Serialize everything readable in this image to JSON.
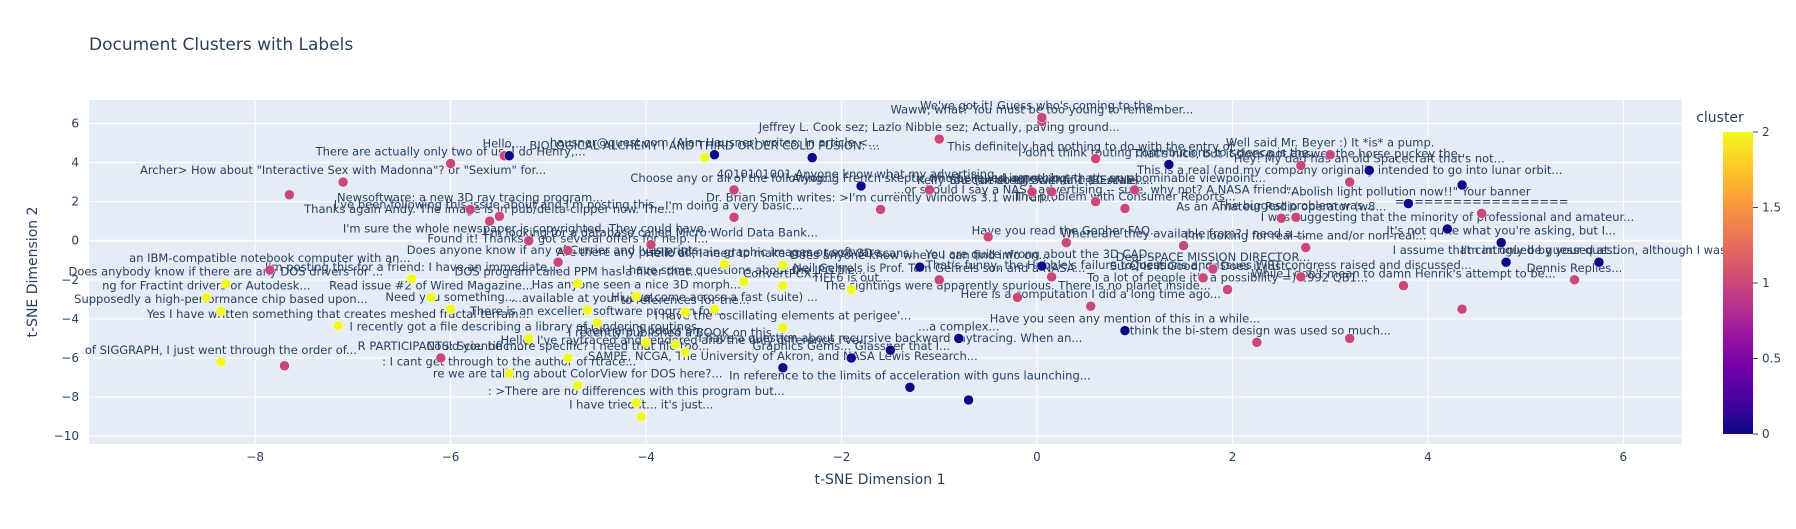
{
  "chart_data": {
    "type": "scatter",
    "title": "Document Clusters with Labels",
    "xlabel": "t-SNE Dimension 1",
    "ylabel": "t-SNE Dimension 2",
    "xlim": [
      -9.7,
      6.6
    ],
    "ylim": [
      -10.4,
      7.2
    ],
    "xticks": [
      -8,
      -6,
      -4,
      -2,
      0,
      2,
      4,
      6
    ],
    "yticks": [
      -10,
      -8,
      -6,
      -4,
      -2,
      0,
      2,
      4,
      6
    ],
    "grid": true,
    "colorbar": {
      "title": "cluster",
      "range": [
        0,
        2
      ],
      "ticks": [
        "0",
        "0.5",
        "1",
        "1.5",
        "2"
      ],
      "colorscale": [
        "#0d0887",
        "#46039f",
        "#7201a8",
        "#9c179e",
        "#bd3786",
        "#d8576b",
        "#ed7953",
        "#fb9f3a",
        "#fdca26",
        "#f0f921"
      ]
    },
    "points": [
      {
        "x": 0.05,
        "y": 6.1,
        "c": 1,
        "label": "Waww, what? You must be too young to remember..."
      },
      {
        "x": 0.05,
        "y": 6.3,
        "c": 1,
        "label": "We've got it! Guess who's coming to the..."
      },
      {
        "x": -1.0,
        "y": 5.2,
        "c": 1,
        "label": "Jeffrey L. Cook sez; Lazlo Nibble sez; Actually, paving ground..."
      },
      {
        "x": -5.45,
        "y": 4.35,
        "c": 1,
        "label": "Hello,..."
      },
      {
        "x": -5.4,
        "y": 4.35,
        "c": 0,
        "label": "..."
      },
      {
        "x": -3.3,
        "y": 4.4,
        "c": 0,
        "label": "hausner@quest.com (Alan Hausner) writes: In article <..."
      },
      {
        "x": -3.4,
        "y": 4.25,
        "c": 2,
        "label": "BIOLOGICAL ALCHEMY I AND THIRD ORDER COLD FUSION: ..."
      },
      {
        "x": -2.3,
        "y": 4.25,
        "c": 0,
        "label": ""
      },
      {
        "x": 0.6,
        "y": 4.2,
        "c": 1,
        "label": "This definitely had nothing to do with the entry of..."
      },
      {
        "x": 1.35,
        "y": 3.9,
        "c": 0,
        "label": "I don't think touting contributions to science is the..."
      },
      {
        "x": 3.0,
        "y": 4.4,
        "c": 1,
        "label": "Well said Mr. Beyer :) It *is* a pump."
      },
      {
        "x": 2.7,
        "y": 3.85,
        "c": 1,
        "label": "That's nice, but it does not answer the horse puckey the..."
      },
      {
        "x": 3.4,
        "y": 3.6,
        "c": 0,
        "label": "Hey! My dad has an old Spacecraft that's not..."
      },
      {
        "x": 3.2,
        "y": 3.0,
        "c": 1,
        "label": "This is a real (and my company originally intended to go into lunar orbit..."
      },
      {
        "x": -6.0,
        "y": 3.95,
        "c": 1,
        "label": "There are actually only two of us. I do Henry,..."
      },
      {
        "x": -7.1,
        "y": 3.0,
        "c": 1,
        "label": "Archer> How about \"Interactive Sex with Madonna\"? or \"Sexium\" for..."
      },
      {
        "x": -3.1,
        "y": 2.6,
        "c": 1,
        "label": "Choose any or all of the following:..."
      },
      {
        "x": -1.8,
        "y": 2.8,
        "c": 0,
        "label": "4Q10101001 Anyone know what my advertising..."
      },
      {
        "x": -1.1,
        "y": 2.6,
        "c": 1,
        "label": "A young French skeptic who believed in nothing"
      },
      {
        "x": 0.15,
        "y": 2.5,
        "c": 1,
        "label": "She [deleted] Scientific (BEANIE) ..."
      },
      {
        "x": 1.0,
        "y": 2.6,
        "c": 1,
        "label": "I agree, but that's an abominable viewpoint..."
      },
      {
        "x": -0.05,
        "y": 2.5,
        "c": 1,
        "label": "Kelly You can do this with a 1:10 scale..."
      },
      {
        "x": 0.6,
        "y": 2.0,
        "c": 1,
        "label": "...or should I say a NASA advertising -- sure, why not? A NASA friend..."
      },
      {
        "x": 4.35,
        "y": 2.85,
        "c": 0,
        "label": ""
      },
      {
        "x": -7.65,
        "y": 2.35,
        "c": 1,
        "label": ""
      },
      {
        "x": -5.5,
        "y": 1.25,
        "c": 1,
        "label": "I've been following this issue about and I'm posting this..."
      },
      {
        "x": -5.8,
        "y": 1.6,
        "c": 1,
        "label": "Newsoftware: a new 3D ray tracing program..."
      },
      {
        "x": -3.1,
        "y": 1.2,
        "c": 1,
        "label": "I'm doing a very basic..."
      },
      {
        "x": -1.6,
        "y": 1.6,
        "c": 1,
        "label": "Dr. Brian Smith writes: >I'm currently Windows 3.1 will run..."
      },
      {
        "x": 0.9,
        "y": 1.65,
        "c": 1,
        "label": "The problem with Consumer Reports..."
      },
      {
        "x": 2.65,
        "y": 1.2,
        "c": 1,
        "label": "The biggest problem was..."
      },
      {
        "x": -5.6,
        "y": 1.0,
        "c": 1,
        "label": "Thanks again Andy. The image is in pub/delta-clipper now. The..."
      },
      {
        "x": 2.5,
        "y": 1.15,
        "c": 1,
        "label": "As an Amateur Radio operator (w8..."
      },
      {
        "x": 3.8,
        "y": 1.9,
        "c": 0,
        "label": "\"Abolish light pollution now!!\" Your banner"
      },
      {
        "x": 4.55,
        "y": 1.4,
        "c": 1,
        "label": "=================="
      },
      {
        "x": -5.2,
        "y": 0.0,
        "c": 1,
        "label": "I'm sure the whole newspaper is copyrighted. They could have..."
      },
      {
        "x": -4.8,
        "y": -0.5,
        "c": 1,
        "label": "Found it! Thanks. I got several offers for help. I..."
      },
      {
        "x": 4.2,
        "y": 0.6,
        "c": 0,
        "label": "I was suggesting that the minority of professional and amateur..."
      },
      {
        "x": -3.95,
        "y": -0.2,
        "c": 1,
        "label": "I'm looking for a database called Micro World Data Bank..."
      },
      {
        "x": -0.5,
        "y": 0.2,
        "c": 1,
        "label": ""
      },
      {
        "x": 0.3,
        "y": -0.1,
        "c": 1,
        "label": "Have you read the Gopher FAQ..."
      },
      {
        "x": 1.5,
        "y": -0.25,
        "c": 1,
        "label": "Where are they available from? I need a ..."
      },
      {
        "x": 2.75,
        "y": -0.35,
        "c": 1,
        "label": "I'm looking for real-time and/or non-real..."
      },
      {
        "x": 4.75,
        "y": -0.1,
        "c": 0,
        "label": "It's not quite what you're asking, but I..."
      },
      {
        "x": 5.75,
        "y": -1.1,
        "c": 0,
        "label": "I'm intrigued by your question, although I was..."
      },
      {
        "x": -7.85,
        "y": -1.5,
        "c": 1,
        "label": "an IBM-compatible notebook computer with an..."
      },
      {
        "x": -4.9,
        "y": -1.1,
        "c": 1,
        "label": "Does anyone know if any of Currier and Ives prints..."
      },
      {
        "x": -3.2,
        "y": -1.2,
        "c": 2,
        "label": "Are there any public domain graphic images or software..."
      },
      {
        "x": -2.6,
        "y": -1.25,
        "c": 2,
        "label": "Hello all, I need to make some torso 3D scans..."
      },
      {
        "x": -1.2,
        "y": -1.35,
        "c": 0,
        "label": "Does anyone know where I can find info on..."
      },
      {
        "x": 0.05,
        "y": -1.3,
        "c": 0,
        "label": "You are quite wrong about the 3D CAD..."
      },
      {
        "x": 1.8,
        "y": -1.45,
        "c": 1,
        "label": "Dear SPACE MISSION DIRECTOR..."
      },
      {
        "x": 4.8,
        "y": -1.1,
        "c": 0,
        "label": "I assume that can only be guessed at..."
      },
      {
        "x": -8.3,
        "y": -2.2,
        "c": 2,
        "label": "Does anybody know if there are any DOS drivers for ..."
      },
      {
        "x": -6.4,
        "y": -1.95,
        "c": 2,
        "label": "I'm posting this for a friend: I have an immediate..."
      },
      {
        "x": -4.7,
        "y": -2.2,
        "c": 2,
        "label": "DOS program called PPM has a filter that..."
      },
      {
        "x": -3.0,
        "y": -2.1,
        "c": 2,
        "label": "I have some questions about the JPG file..."
      },
      {
        "x": -2.6,
        "y": -2.3,
        "c": 2,
        "label": "ConvertPCX..."
      },
      {
        "x": -1.0,
        "y": -2.0,
        "c": 1,
        "label": "Neil Gehrels is Prof. Tom Gehrels son and a NASA..."
      },
      {
        "x": 0.15,
        "y": -1.85,
        "c": 1,
        "label": "That's funny, the Hubble's failure to focus..."
      },
      {
        "x": 1.7,
        "y": -1.9,
        "c": 1,
        "label": "Sure, Is it Good, or Does it just..."
      },
      {
        "x": 2.7,
        "y": -1.85,
        "c": 1,
        "label": "Questions and Issues WRT congress raised and discussed..."
      },
      {
        "x": 5.5,
        "y": -2.0,
        "c": 1,
        "label": "Dennis Replies..."
      },
      {
        "x": -8.5,
        "y": -2.9,
        "c": 2,
        "label": "ng for Fractint drivers or Autodesk..."
      },
      {
        "x": -6.2,
        "y": -2.9,
        "c": 2,
        "label": "Read issue #2 of Wired Magazine..."
      },
      {
        "x": -4.1,
        "y": -2.85,
        "c": 2,
        "label": "Has anyone seen a nice 3D morph..."
      },
      {
        "x": -1.9,
        "y": -2.5,
        "c": 2,
        "label": "TIFF6 is out..."
      },
      {
        "x": -0.2,
        "y": -2.9,
        "c": 1,
        "label": "The sightings were apparently spurious. There is no planet inside..."
      },
      {
        "x": 1.95,
        "y": -2.5,
        "c": 1,
        "label": "To a lot of people it's a possibility =) 1992 QB1..."
      },
      {
        "x": 3.75,
        "y": -2.3,
        "c": 1,
        "label": "While I don't mean to damn Henrik's attempt to be..."
      },
      {
        "x": -8.35,
        "y": -3.6,
        "c": 2,
        "label": "Supposedly a high-performance chip based upon..."
      },
      {
        "x": -6.0,
        "y": -3.5,
        "c": 2,
        "label": "Need you something..."
      },
      {
        "x": -4.6,
        "y": -3.55,
        "c": 2,
        "label": "...available at your usual..."
      },
      {
        "x": -3.6,
        "y": -3.65,
        "c": 2,
        "label": "to references for the..."
      },
      {
        "x": -3.3,
        "y": -3.5,
        "c": 2,
        "label": "Hi, I've come across a fast (suite) ..."
      },
      {
        "x": 0.55,
        "y": -3.35,
        "c": 1,
        "label": "Here is a computation I did a long time ago..."
      },
      {
        "x": 4.35,
        "y": -3.5,
        "c": 1,
        "label": ""
      },
      {
        "x": -7.15,
        "y": -4.35,
        "c": 2,
        "label": "Yes I have written something that creates meshed fractal terrain..."
      },
      {
        "x": -4.5,
        "y": -4.2,
        "c": 2,
        "label": "There is an excellent software program for..."
      },
      {
        "x": -2.6,
        "y": -4.45,
        "c": 2,
        "label": "I have the 'oscillating elements at perigee'..."
      },
      {
        "x": 0.9,
        "y": -4.6,
        "c": 0,
        "label": "Have you seen any mention of this in a while..."
      },
      {
        "x": 2.25,
        "y": -5.2,
        "c": 1,
        "label": "I think the bi-stem design was used so much..."
      },
      {
        "x": 3.2,
        "y": -5.0,
        "c": 1,
        "label": ""
      },
      {
        "x": -6.1,
        "y": -6.0,
        "c": 1,
        "label": "R PARTICIPANTS: Scientific ..."
      },
      {
        "x": -5.2,
        "y": -5.0,
        "c": 2,
        "label": "I recently got a file describing a library of rendering routines..."
      },
      {
        "x": -4.0,
        "y": -5.2,
        "c": 2,
        "label": "There are 2 books on ..."
      },
      {
        "x": -3.7,
        "y": -5.3,
        "c": 2,
        "label": "I recently published a BOOK on this..."
      },
      {
        "x": -1.9,
        "y": -6.0,
        "c": 0,
        "label": "Graphics Gems... Glassner that I..."
      },
      {
        "x": -0.8,
        "y": -5.0,
        "c": 0,
        "label": "...a complex..."
      },
      {
        "x": -8.35,
        "y": -6.2,
        "c": 2,
        "label": "of SIGGRAPH, I just went through the order of..."
      },
      {
        "x": -7.7,
        "y": -6.4,
        "c": 1,
        "label": ""
      },
      {
        "x": -4.8,
        "y": -6.0,
        "c": 2,
        "label": "Could you be more specific? I need that file too..."
      },
      {
        "x": -3.6,
        "y": -5.7,
        "c": 2,
        "label": "Hello, I've raytraced and rendered and the only difference I've..."
      },
      {
        "x": -2.6,
        "y": -6.5,
        "c": 0,
        "label": "SAMPE, NCGA, The University of Akron, and NASA Lewis Research..."
      },
      {
        "x": -1.5,
        "y": -5.6,
        "c": 0,
        "label": "I have a question about recursive backward raytracing. When an..."
      },
      {
        "x": -5.4,
        "y": -6.8,
        "c": 2,
        "label": ": I cant get through to the author of rtrace..."
      },
      {
        "x": -4.7,
        "y": -7.4,
        "c": 2,
        "label": "re we are talking about ColorView for DOS here?..."
      },
      {
        "x": -1.3,
        "y": -7.5,
        "c": 0,
        "label": "In reference to the limits of acceleration with guns launching..."
      },
      {
        "x": -0.7,
        "y": -8.15,
        "c": 0,
        "label": ""
      },
      {
        "x": -4.1,
        "y": -8.3,
        "c": 2,
        "label": ": >There are no differences with this program but..."
      },
      {
        "x": -4.05,
        "y": -9.0,
        "c": 2,
        "label": "I have tried it... it's just..."
      }
    ]
  }
}
